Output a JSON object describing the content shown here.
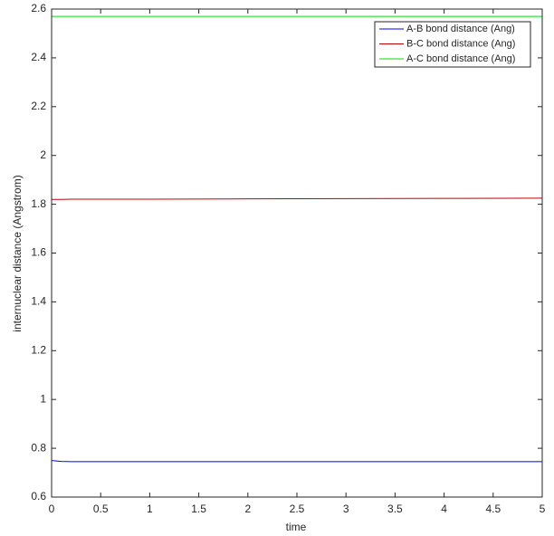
{
  "chart_data": {
    "type": "line",
    "x_label": "time",
    "y_label": "internuclear distance (Angstrom)",
    "x": [
      0,
      0.1,
      0.2,
      0.5,
      1,
      2,
      3,
      4,
      5
    ],
    "series": [
      {
        "name": "A-B bond distance (Ang)",
        "color": "#0000ff",
        "values": [
          0.75,
          0.746,
          0.745,
          0.745,
          0.745,
          0.745,
          0.745,
          0.745,
          0.745
        ]
      },
      {
        "name": "B-C bond distance (Ang)",
        "color": "#c00000",
        "values": [
          1.82,
          1.82,
          1.821,
          1.821,
          1.821,
          1.822,
          1.823,
          1.824,
          1.825
        ]
      },
      {
        "name": "A-C bond distance (Ang)",
        "color": "#00dd00",
        "values": [
          2.57,
          2.57,
          2.57,
          2.57,
          2.57,
          2.57,
          2.57,
          2.57,
          2.57
        ]
      }
    ],
    "xlim": [
      0,
      5
    ],
    "ylim": [
      0.6,
      2.6
    ],
    "xticks": [
      0,
      0.5,
      1,
      1.5,
      2,
      2.5,
      3,
      3.5,
      4,
      4.5,
      5
    ],
    "yticks": [
      0.6,
      0.8,
      1,
      1.2,
      1.4,
      1.6,
      1.8,
      2,
      2.2,
      2.4,
      2.6
    ],
    "grid": false,
    "legend": "top-right"
  }
}
